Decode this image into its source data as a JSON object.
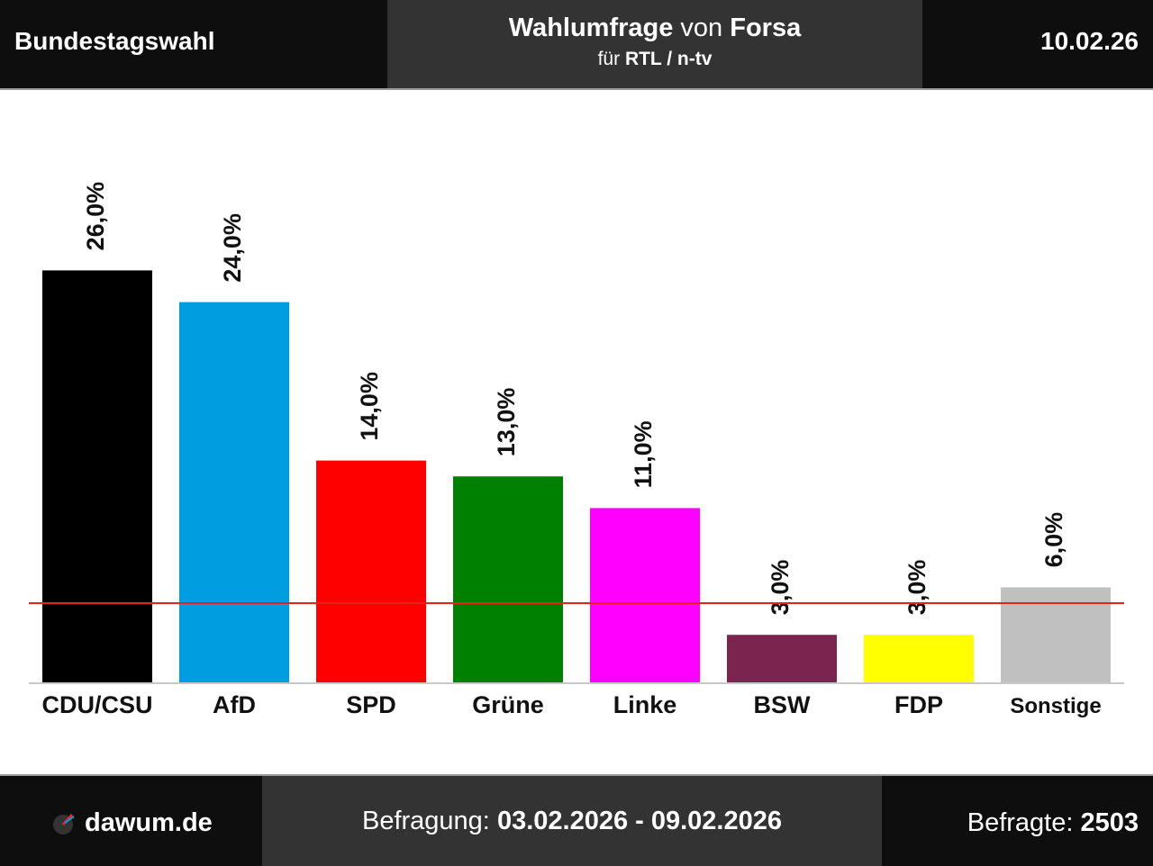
{
  "header": {
    "left": "Bundestagswahl",
    "title_bold1": "Wahlumfrage",
    "title_mid": " von ",
    "title_bold2": "Forsa",
    "sub_prefix": "für ",
    "sub_bold": "RTL / n-tv",
    "date": "10.02.26"
  },
  "footer": {
    "site": "dawum.de",
    "survey_label": "Befragung: ",
    "survey_range": "03.02.2026 - 09.02.2026",
    "respondents_label": "Befragte: ",
    "respondents": "2503"
  },
  "chart_data": {
    "type": "bar",
    "categories": [
      "CDU/CSU",
      "AfD",
      "SPD",
      "Grüne",
      "Linke",
      "BSW",
      "FDP",
      "Sonstige"
    ],
    "values": [
      26.0,
      24.0,
      14.0,
      13.0,
      11.0,
      3.0,
      3.0,
      6.0
    ],
    "value_labels": [
      "26,0%",
      "24,0%",
      "14,0%",
      "13,0%",
      "11,0%",
      "3,0%",
      "3,0%",
      "6,0%"
    ],
    "colors": [
      "#000000",
      "#009ee0",
      "#ff0000",
      "#008000",
      "#ff00ff",
      "#7b2450",
      "#ffff00",
      "#c0c0c0"
    ],
    "threshold": 5,
    "threshold_color": "#e8211d",
    "grid": false
  }
}
